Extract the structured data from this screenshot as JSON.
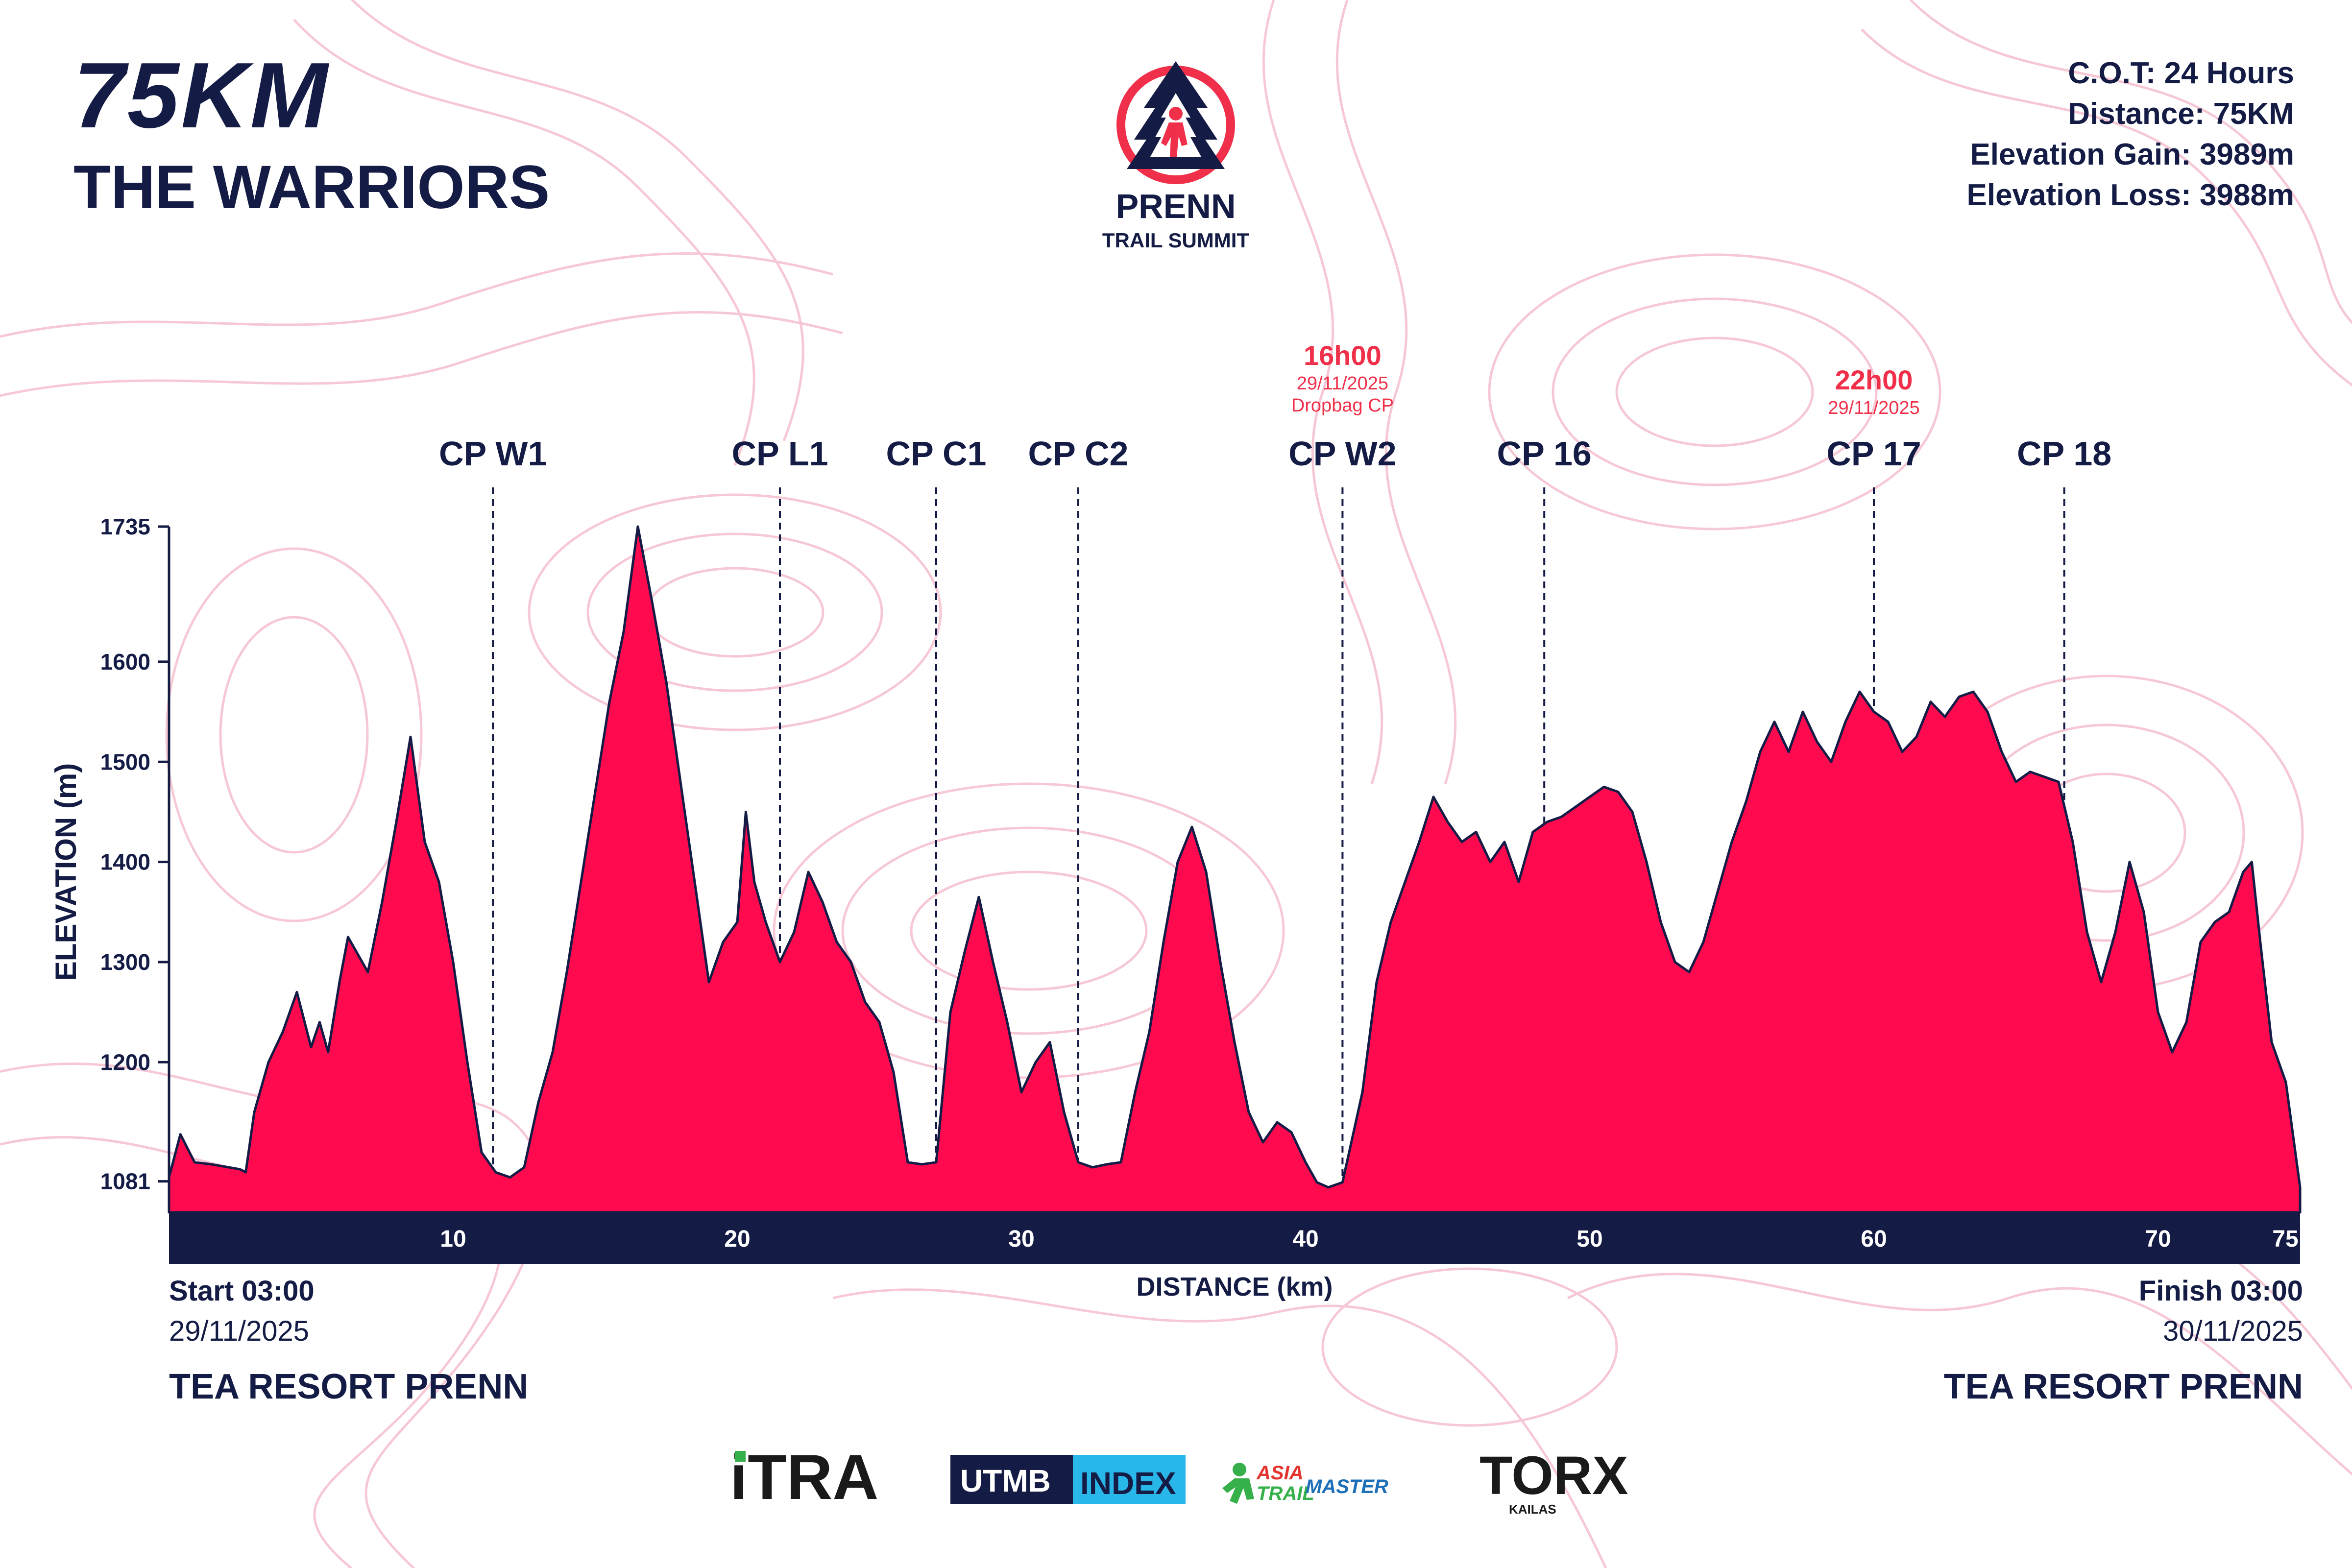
{
  "header": {
    "distance_title": "75KM",
    "race_name": "THE WARRIORS",
    "stats": [
      "C.O.T: 24 Hours",
      "Distance: 75KM",
      "Elevation Gain: 3989m",
      "Elevation Loss: 3988m"
    ]
  },
  "logo": {
    "line1": "PRENN",
    "line2": "TRAIL SUMMIT"
  },
  "start": {
    "time": "Start 03:00",
    "date": "29/11/2025",
    "location": "TEA RESORT PRENN"
  },
  "finish": {
    "time": "Finish 03:00",
    "date": "30/11/2025",
    "location": "TEA RESORT PRENN"
  },
  "sponsors": {
    "itra": "iTRA",
    "utmb_a": "UTMB",
    "utmb_b": "INDEX",
    "asia_a": "ASIA",
    "asia_b": "TRAIL",
    "asia_c": "MASTER",
    "torx": "TORX",
    "kailas": "KAILAS"
  },
  "colors": {
    "navy": "#141c45",
    "fill": "#ff0a4f",
    "accent": "#f0304a",
    "contour": "#f6c3d2"
  },
  "chart_data": {
    "type": "area",
    "xlabel": "DISTANCE (km)",
    "ylabel": "ELEVATION (m)",
    "xlim": [
      0,
      75
    ],
    "ylim": [
      1050,
      1735
    ],
    "x_ticks": [
      10,
      20,
      30,
      40,
      50,
      60,
      70,
      75
    ],
    "y_ticks": [
      1081,
      1200,
      1300,
      1400,
      1500,
      1600,
      1735
    ],
    "grid": false,
    "checkpoints": [
      {
        "name": "CP W1",
        "km": 11.4
      },
      {
        "name": "CP L1",
        "km": 21.5
      },
      {
        "name": "CP C1",
        "km": 27.0
      },
      {
        "name": "CP C2",
        "km": 32.0
      },
      {
        "name": "CP W2",
        "km": 41.3,
        "cutoff": "16h00",
        "cutoff_date": "29/11/2025",
        "note": "Dropbag CP"
      },
      {
        "name": "CP 16",
        "km": 48.4
      },
      {
        "name": "CP 17",
        "km": 60.0,
        "cutoff": "22h00",
        "cutoff_date": "29/11/2025"
      },
      {
        "name": "CP 18",
        "km": 66.7
      }
    ],
    "profile": [
      [
        0,
        1085
      ],
      [
        0.4,
        1128
      ],
      [
        0.9,
        1100
      ],
      [
        1.5,
        1098
      ],
      [
        2.5,
        1093
      ],
      [
        2.7,
        1090
      ],
      [
        3.0,
        1150
      ],
      [
        3.5,
        1200
      ],
      [
        4.0,
        1230
      ],
      [
        4.5,
        1270
      ],
      [
        5.0,
        1215
      ],
      [
        5.3,
        1240
      ],
      [
        5.6,
        1210
      ],
      [
        6.0,
        1280
      ],
      [
        6.3,
        1325
      ],
      [
        6.6,
        1310
      ],
      [
        7.0,
        1290
      ],
      [
        7.5,
        1360
      ],
      [
        8.0,
        1440
      ],
      [
        8.5,
        1525
      ],
      [
        9.0,
        1420
      ],
      [
        9.5,
        1380
      ],
      [
        10.0,
        1300
      ],
      [
        10.5,
        1200
      ],
      [
        11.0,
        1110
      ],
      [
        11.5,
        1090
      ],
      [
        12.0,
        1085
      ],
      [
        12.5,
        1095
      ],
      [
        13.0,
        1160
      ],
      [
        13.5,
        1210
      ],
      [
        14.0,
        1290
      ],
      [
        14.5,
        1380
      ],
      [
        15.0,
        1470
      ],
      [
        15.5,
        1560
      ],
      [
        16.0,
        1630
      ],
      [
        16.5,
        1735
      ],
      [
        17.0,
        1660
      ],
      [
        17.5,
        1580
      ],
      [
        18.0,
        1480
      ],
      [
        18.5,
        1380
      ],
      [
        19.0,
        1280
      ],
      [
        19.5,
        1320
      ],
      [
        20.0,
        1340
      ],
      [
        20.3,
        1450
      ],
      [
        20.6,
        1380
      ],
      [
        21.0,
        1340
      ],
      [
        21.5,
        1300
      ],
      [
        22.0,
        1330
      ],
      [
        22.5,
        1390
      ],
      [
        23.0,
        1360
      ],
      [
        23.5,
        1320
      ],
      [
        24.0,
        1300
      ],
      [
        24.5,
        1260
      ],
      [
        25.0,
        1240
      ],
      [
        25.5,
        1190
      ],
      [
        26.0,
        1100
      ],
      [
        26.5,
        1098
      ],
      [
        27.0,
        1100
      ],
      [
        27.5,
        1250
      ],
      [
        28.0,
        1310
      ],
      [
        28.5,
        1365
      ],
      [
        29.0,
        1300
      ],
      [
        29.5,
        1240
      ],
      [
        30.0,
        1170
      ],
      [
        30.5,
        1200
      ],
      [
        31.0,
        1220
      ],
      [
        31.5,
        1150
      ],
      [
        32.0,
        1100
      ],
      [
        32.5,
        1095
      ],
      [
        33.0,
        1098
      ],
      [
        33.5,
        1100
      ],
      [
        34.0,
        1170
      ],
      [
        34.5,
        1230
      ],
      [
        35.0,
        1320
      ],
      [
        35.5,
        1400
      ],
      [
        36.0,
        1435
      ],
      [
        36.5,
        1390
      ],
      [
        37.0,
        1300
      ],
      [
        37.5,
        1220
      ],
      [
        38.0,
        1150
      ],
      [
        38.5,
        1120
      ],
      [
        39.0,
        1140
      ],
      [
        39.5,
        1130
      ],
      [
        40.0,
        1100
      ],
      [
        40.4,
        1080
      ],
      [
        40.8,
        1075
      ],
      [
        41.3,
        1080
      ],
      [
        42.0,
        1170
      ],
      [
        42.5,
        1280
      ],
      [
        43.0,
        1340
      ],
      [
        43.5,
        1380
      ],
      [
        44.0,
        1420
      ],
      [
        44.5,
        1465
      ],
      [
        45.0,
        1440
      ],
      [
        45.5,
        1420
      ],
      [
        46.0,
        1430
      ],
      [
        46.5,
        1400
      ],
      [
        47.0,
        1420
      ],
      [
        47.5,
        1380
      ],
      [
        48.0,
        1430
      ],
      [
        48.5,
        1440
      ],
      [
        49.0,
        1445
      ],
      [
        49.5,
        1455
      ],
      [
        50.0,
        1465
      ],
      [
        50.5,
        1475
      ],
      [
        51.0,
        1470
      ],
      [
        51.5,
        1450
      ],
      [
        52.0,
        1400
      ],
      [
        52.5,
        1340
      ],
      [
        53.0,
        1300
      ],
      [
        53.5,
        1290
      ],
      [
        54.0,
        1320
      ],
      [
        54.5,
        1370
      ],
      [
        55.0,
        1420
      ],
      [
        55.5,
        1460
      ],
      [
        56.0,
        1510
      ],
      [
        56.5,
        1540
      ],
      [
        57.0,
        1510
      ],
      [
        57.5,
        1550
      ],
      [
        58.0,
        1520
      ],
      [
        58.5,
        1500
      ],
      [
        59.0,
        1540
      ],
      [
        59.5,
        1570
      ],
      [
        60.0,
        1550
      ],
      [
        60.5,
        1540
      ],
      [
        61.0,
        1510
      ],
      [
        61.5,
        1525
      ],
      [
        62.0,
        1560
      ],
      [
        62.5,
        1545
      ],
      [
        63.0,
        1565
      ],
      [
        63.5,
        1570
      ],
      [
        64.0,
        1550
      ],
      [
        64.5,
        1510
      ],
      [
        65.0,
        1480
      ],
      [
        65.5,
        1490
      ],
      [
        66.0,
        1485
      ],
      [
        66.5,
        1480
      ],
      [
        67.0,
        1420
      ],
      [
        67.5,
        1330
      ],
      [
        68.0,
        1280
      ],
      [
        68.5,
        1330
      ],
      [
        69.0,
        1400
      ],
      [
        69.5,
        1350
      ],
      [
        70.0,
        1250
      ],
      [
        70.5,
        1210
      ],
      [
        71.0,
        1240
      ],
      [
        71.5,
        1320
      ],
      [
        72.0,
        1340
      ],
      [
        72.5,
        1350
      ],
      [
        73.0,
        1390
      ],
      [
        73.3,
        1400
      ],
      [
        73.6,
        1320
      ],
      [
        74.0,
        1220
      ],
      [
        74.5,
        1180
      ],
      [
        75.0,
        1075
      ]
    ]
  }
}
